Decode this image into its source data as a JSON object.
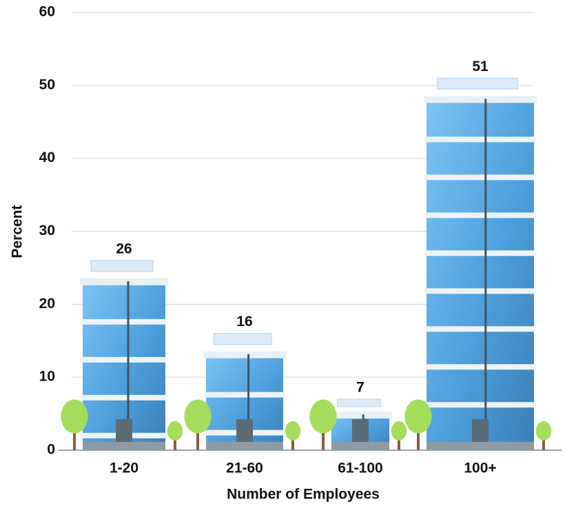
{
  "chart_data": {
    "type": "bar",
    "x_label": "Number of Employees",
    "y_label": "Percent",
    "categories": [
      "1-20",
      "21-60",
      "61-100",
      "100+"
    ],
    "values": [
      26,
      16,
      7,
      51
    ],
    "color": "#5aa9e6",
    "ylim": [
      0,
      60
    ],
    "yticks": [
      0,
      10,
      20,
      30,
      40,
      50,
      60
    ],
    "grid": true
  }
}
